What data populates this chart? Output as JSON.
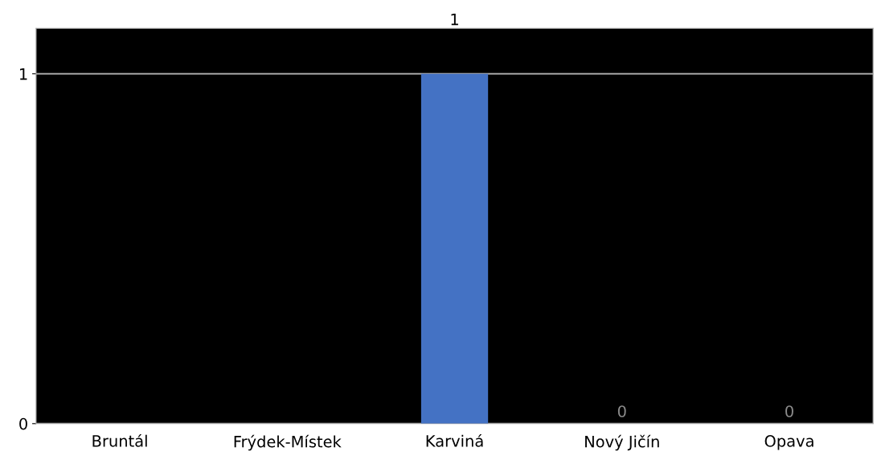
{
  "chart_data": {
    "type": "bar",
    "categories": [
      "Bruntál",
      "Frýdek-Místek",
      "Karviná",
      "Nový Jičín",
      "Opava"
    ],
    "values": [
      0,
      0,
      1,
      0,
      0
    ],
    "value_labels": [
      null,
      null,
      "1",
      "0",
      "0"
    ],
    "color": "#4472c4",
    "ylim": [
      0,
      1.13
    ],
    "yticks": [
      0,
      1
    ],
    "grid": "y"
  }
}
